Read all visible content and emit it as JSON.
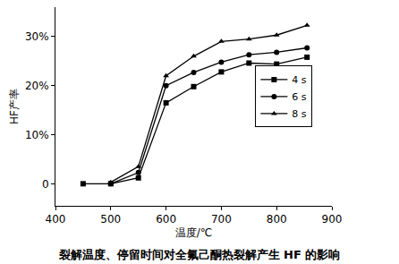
{
  "chart_data": {
    "type": "line",
    "title": "裂解温度、停留时间对全氟己酮热裂解产生 HF 的影响",
    "x_label": "温度/℃",
    "y_label": "HF产率",
    "x": [
      450,
      500,
      550,
      600,
      650,
      700,
      750,
      800,
      855
    ],
    "series": [
      {
        "name": "4 s",
        "color": "#000000",
        "marker": "square",
        "values": [
          0,
          0,
          1.2,
          16.5,
          19.8,
          22.8,
          24.6,
          24.4,
          25.8
        ]
      },
      {
        "name": "6 s",
        "color": "#000000",
        "marker": "circle",
        "values": [
          null,
          0,
          2.3,
          20,
          22.7,
          24.8,
          26.3,
          26.8,
          27.7
        ]
      },
      {
        "name": "8 s",
        "color": "#000000",
        "marker": "triangle",
        "values": [
          null,
          0.3,
          3.5,
          22,
          26,
          29,
          29.5,
          30.3,
          32.3
        ]
      }
    ],
    "xlim": [
      400,
      900
    ],
    "xticks": [
      400,
      500,
      600,
      700,
      800,
      900
    ],
    "ylim": [
      -4.5,
      36
    ],
    "yticks": [
      0,
      {
        "value": 10,
        "label": "10%"
      },
      {
        "value": 20,
        "label": "20%"
      },
      {
        "value": 30,
        "label": "30%"
      }
    ],
    "grid": false,
    "legend": "right"
  }
}
